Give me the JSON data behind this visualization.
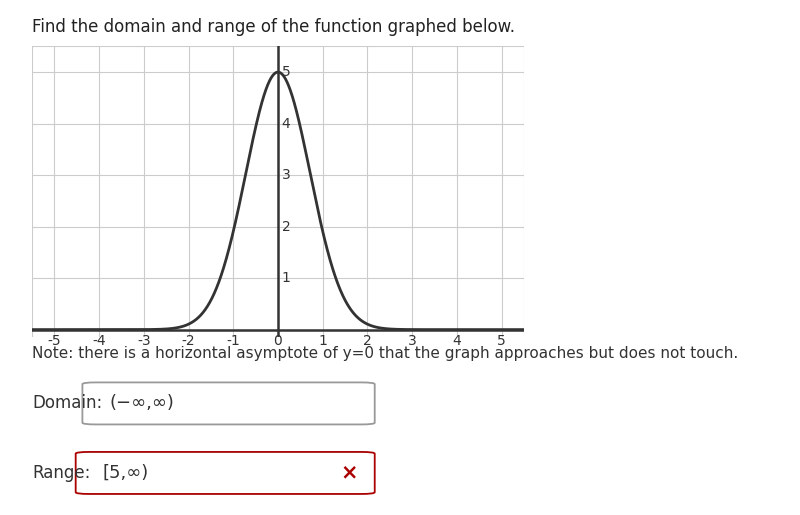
{
  "title": "Find the domain and range of the function graphed below.",
  "title_fontsize": 12,
  "title_color": "#222222",
  "graph_xlim": [
    -5.5,
    5.5
  ],
  "graph_ylim": [
    -0.15,
    5.5
  ],
  "xticks": [
    -5,
    -4,
    -3,
    -2,
    -1,
    0,
    1,
    2,
    3,
    4,
    5
  ],
  "yticks": [
    1,
    2,
    3,
    4,
    5
  ],
  "curve_color": "#333333",
  "curve_lw": 2.0,
  "grid_color": "#cccccc",
  "grid_lw": 0.8,
  "axis_color": "#333333",
  "axis_lw": 1.8,
  "curve_sigma": 0.72,
  "curve_amplitude": 5.0,
  "note_text": "Note: there is a horizontal asymptote of y=0 that the graph approaches but does not touch.",
  "domain_label": "Domain:",
  "domain_value": "(−∞,∞)",
  "range_label": "Range:",
  "range_value": "[5,∞)",
  "range_box_color": "#aa0000",
  "domain_box_color": "#999999",
  "x_marker": "×",
  "x_marker_color": "#aa0000",
  "bg_color": "#ffffff",
  "text_color": "#333333",
  "note_fontsize": 11,
  "label_fontsize": 12,
  "answer_fontsize": 13,
  "tick_fontsize": 10
}
